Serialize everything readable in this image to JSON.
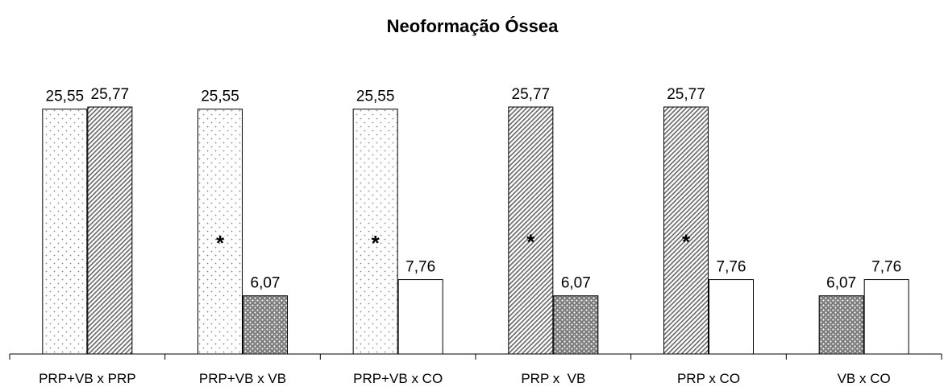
{
  "chart_data": {
    "type": "bar",
    "title": "Neoformação Óssea",
    "xlabel": "",
    "ylabel": "",
    "ylim": [
      0,
      27
    ],
    "grid": false,
    "legend": "none",
    "categories": [
      "PRP+VB x PRP",
      "PRP+VB x VB",
      "PRP+VB x CO",
      "PRP x  VB",
      "PRP x CO",
      "VB x CO"
    ],
    "groups": [
      {
        "bars": [
          {
            "group": "PRP+VB",
            "value": 25.55,
            "label": "25,55"
          },
          {
            "group": "PRP",
            "value": 25.77,
            "label": "25,77"
          }
        ],
        "annotation": ""
      },
      {
        "bars": [
          {
            "group": "PRP+VB",
            "value": 25.55,
            "label": "25,55"
          },
          {
            "group": "VB",
            "value": 6.07,
            "label": "6,07"
          }
        ],
        "annotation": "*"
      },
      {
        "bars": [
          {
            "group": "PRP+VB",
            "value": 25.55,
            "label": "25,55"
          },
          {
            "group": "CO",
            "value": 7.76,
            "label": "7,76"
          }
        ],
        "annotation": "*"
      },
      {
        "bars": [
          {
            "group": "PRP",
            "value": 25.77,
            "label": "25,77"
          },
          {
            "group": "VB",
            "value": 6.07,
            "label": "6,07"
          }
        ],
        "annotation": "*"
      },
      {
        "bars": [
          {
            "group": "PRP",
            "value": 25.77,
            "label": "25,77"
          },
          {
            "group": "CO",
            "value": 7.76,
            "label": "7,76"
          }
        ],
        "annotation": "*"
      },
      {
        "bars": [
          {
            "group": "VB",
            "value": 6.07,
            "label": "6,07"
          },
          {
            "group": "CO",
            "value": 7.76,
            "label": "7,76"
          }
        ],
        "annotation": ""
      }
    ]
  }
}
